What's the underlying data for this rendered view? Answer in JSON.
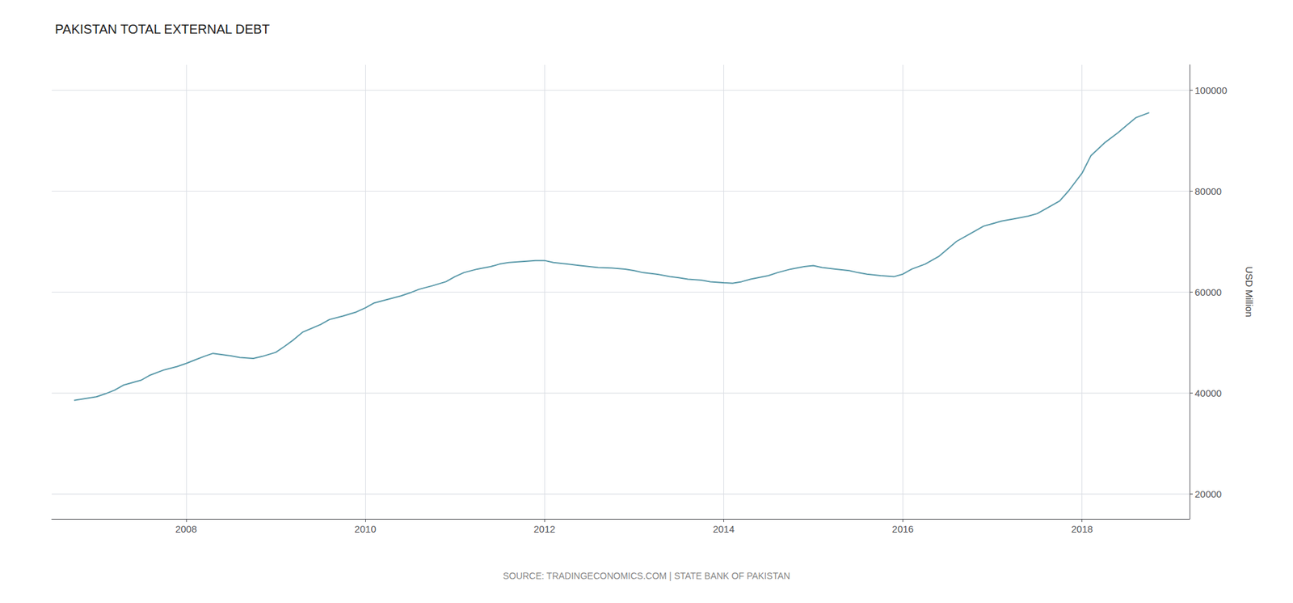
{
  "chart_data": {
    "type": "line",
    "title": "PAKISTAN TOTAL EXTERNAL DEBT",
    "ylabel": "USD Million",
    "annotation": "SOURCE: TRADINGECONOMICS.COM | STATE BANK OF PAKISTAN",
    "color": "#5b9aaa",
    "grid": true,
    "xlim": [
      2006.5,
      2019.2
    ],
    "xticks": [
      2008,
      2010,
      2012,
      2014,
      2016,
      2018
    ],
    "ylim": [
      15000,
      105000
    ],
    "yticks": [
      20000,
      40000,
      60000,
      80000,
      100000
    ],
    "x": [
      2006.75,
      2007.0,
      2007.1,
      2007.2,
      2007.3,
      2007.5,
      2007.6,
      2007.75,
      2007.9,
      2008.0,
      2008.1,
      2008.2,
      2008.3,
      2008.5,
      2008.6,
      2008.75,
      2008.85,
      2009.0,
      2009.1,
      2009.2,
      2009.3,
      2009.5,
      2009.6,
      2009.75,
      2009.9,
      2010.0,
      2010.1,
      2010.25,
      2010.4,
      2010.5,
      2010.6,
      2010.75,
      2010.9,
      2011.0,
      2011.1,
      2011.25,
      2011.4,
      2011.5,
      2011.6,
      2011.75,
      2011.9,
      2012.0,
      2012.1,
      2012.25,
      2012.4,
      2012.5,
      2012.6,
      2012.75,
      2012.9,
      2013.0,
      2013.1,
      2013.25,
      2013.4,
      2013.5,
      2013.6,
      2013.75,
      2013.85,
      2014.0,
      2014.1,
      2014.2,
      2014.3,
      2014.5,
      2014.6,
      2014.75,
      2014.9,
      2015.0,
      2015.1,
      2015.25,
      2015.4,
      2015.5,
      2015.6,
      2015.75,
      2015.9,
      2016.0,
      2016.1,
      2016.25,
      2016.4,
      2016.5,
      2016.6,
      2016.75,
      2016.9,
      2017.0,
      2017.1,
      2017.25,
      2017.4,
      2017.5,
      2017.6,
      2017.75,
      2017.85,
      2018.0,
      2018.1,
      2018.25,
      2018.4,
      2018.5,
      2018.6,
      2018.75
    ],
    "values": [
      38500,
      39200,
      39800,
      40500,
      41500,
      42500,
      43500,
      44500,
      45200,
      45800,
      46500,
      47200,
      47800,
      47300,
      47000,
      46800,
      47200,
      48000,
      49200,
      50500,
      52000,
      53500,
      54500,
      55200,
      56000,
      56800,
      57800,
      58500,
      59200,
      59800,
      60500,
      61200,
      62000,
      63000,
      63800,
      64500,
      65000,
      65500,
      65800,
      66000,
      66200,
      66200,
      65800,
      65500,
      65200,
      65000,
      64800,
      64700,
      64500,
      64200,
      63800,
      63500,
      63000,
      62800,
      62500,
      62300,
      62000,
      61800,
      61700,
      62000,
      62500,
      63200,
      63800,
      64500,
      65000,
      65200,
      64800,
      64500,
      64200,
      63800,
      63500,
      63200,
      63000,
      63500,
      64500,
      65500,
      67000,
      68500,
      70000,
      71500,
      73000,
      73500,
      74000,
      74500,
      75000,
      75500,
      76500,
      78000,
      80000,
      83500,
      87000,
      89500,
      91500,
      93000,
      94500,
      95500
    ]
  }
}
